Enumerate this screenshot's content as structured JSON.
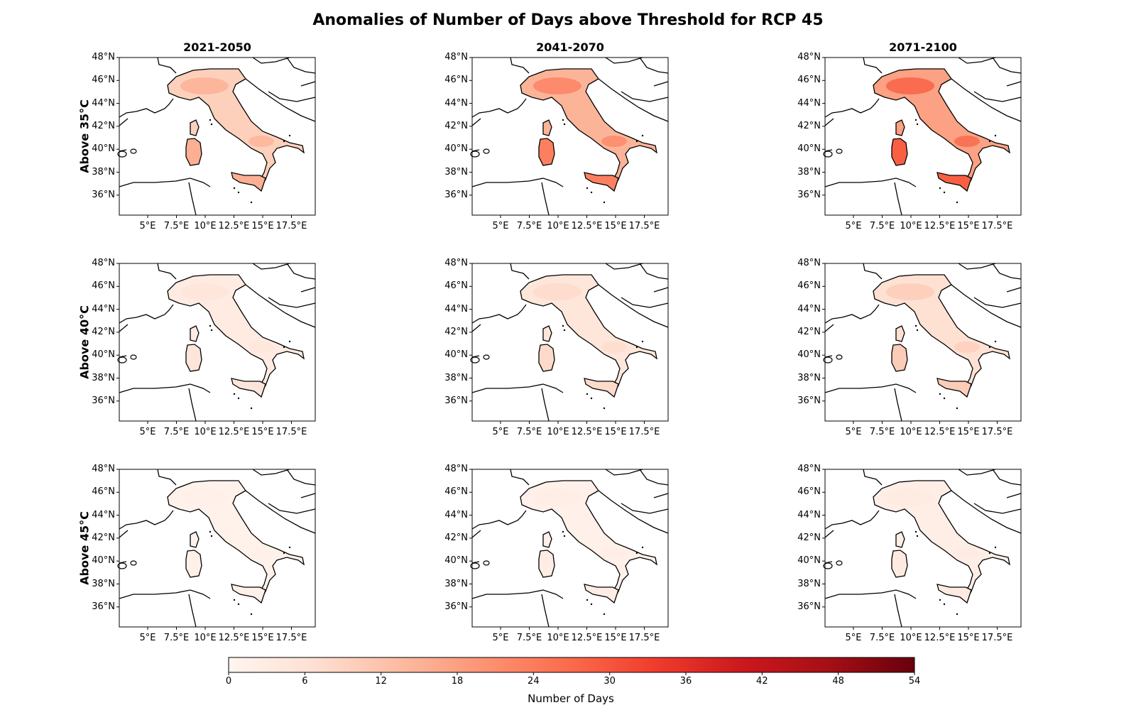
{
  "title": "Anomalies of Number of Days above Threshold for RCP 45",
  "columns": [
    "2021-2050",
    "2041-2070",
    "2071-2100"
  ],
  "rows": [
    "Above 35°C",
    "Above 40°C",
    "Above 45°C"
  ],
  "lat_ticks": [
    "48°N",
    "46°N",
    "44°N",
    "42°N",
    "40°N",
    "38°N",
    "36°N"
  ],
  "lon_ticks": [
    "5°E",
    "7.5°E",
    "10°E",
    "12.5°E",
    "15°E",
    "17.5°E"
  ],
  "colorbar": {
    "label": "Number of Days",
    "ticks": [
      "0",
      "6",
      "12",
      "18",
      "24",
      "30",
      "36",
      "42",
      "48",
      "54"
    ],
    "colormap": "Reds",
    "min": 0,
    "max": 54
  },
  "colors": {
    "low": "#fff5f0",
    "mid": "#fb6a4a",
    "high": "#67000d",
    "coastline": "#000000"
  },
  "panel_intensity": [
    [
      0.18,
      0.27,
      0.33
    ],
    [
      0.06,
      0.09,
      0.12
    ],
    [
      0.02,
      0.03,
      0.04
    ]
  ]
}
